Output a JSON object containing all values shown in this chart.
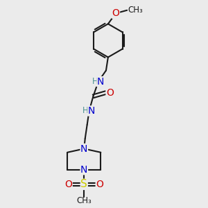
{
  "bg_color": "#ebebeb",
  "bond_color": "#1a1a1a",
  "bond_width": 1.5,
  "atom_colors": {
    "N": "#0000cc",
    "O": "#cc0000",
    "S": "#cccc00",
    "C": "#1a1a1a",
    "H": "#4a9090"
  },
  "font_size": 9.5,
  "figsize": [
    3.0,
    3.0
  ],
  "dpi": 100
}
